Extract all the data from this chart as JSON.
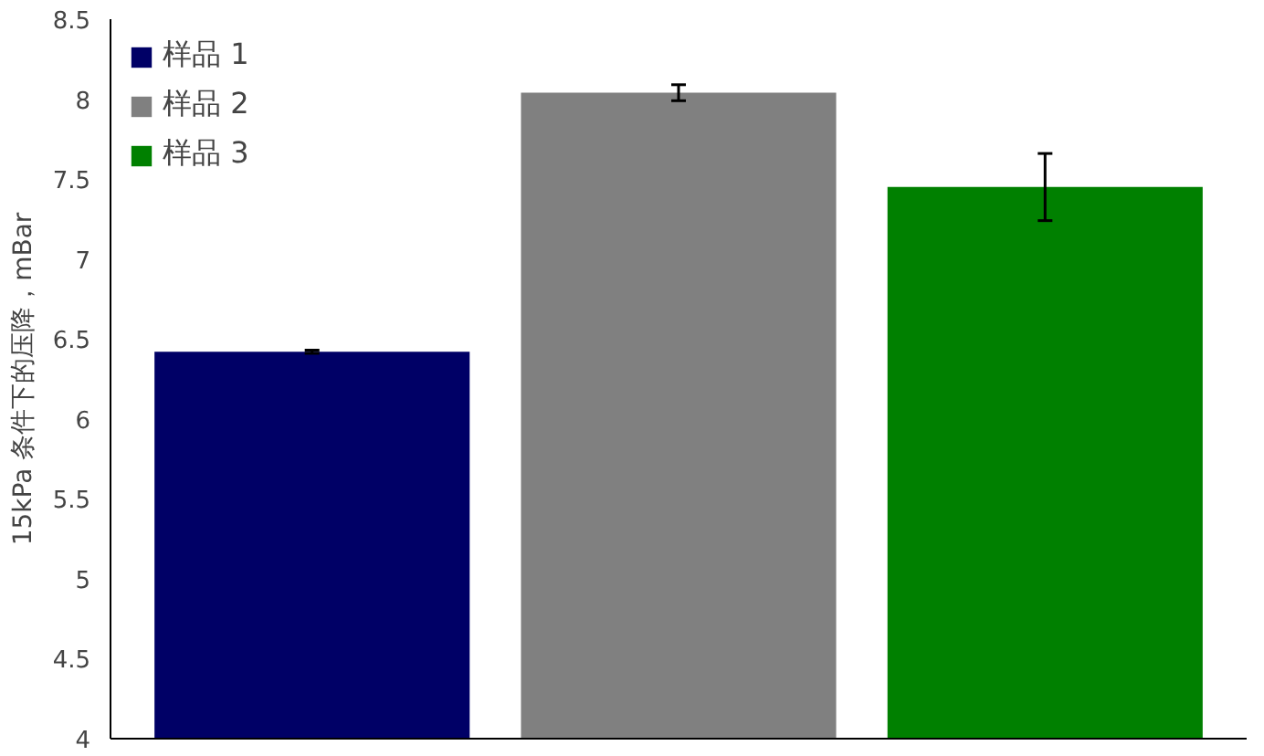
{
  "chart_data": {
    "type": "bar",
    "ylabel": "15kPa 条件下的压降，mBar",
    "categories": [
      null,
      null,
      null
    ],
    "series": [
      {
        "name": "样品 1",
        "color": "#000066",
        "values": [
          6.42,
          null,
          null
        ],
        "errors": [
          0.01,
          null,
          null
        ]
      },
      {
        "name": "样品 2",
        "color": "#808080",
        "values": [
          null,
          8.04,
          null
        ],
        "errors": [
          null,
          0.05,
          null
        ]
      },
      {
        "name": "样品 3",
        "color": "#008000",
        "values": [
          null,
          null,
          7.45
        ],
        "errors": [
          null,
          null,
          0.21
        ]
      }
    ],
    "ylim": [
      4,
      8.5
    ],
    "yticks": [
      4,
      4.5,
      5,
      5.5,
      6,
      6.5,
      7,
      7.5,
      8,
      8.5
    ],
    "grid": false,
    "legend": "top left",
    "tick_labels": "y"
  }
}
